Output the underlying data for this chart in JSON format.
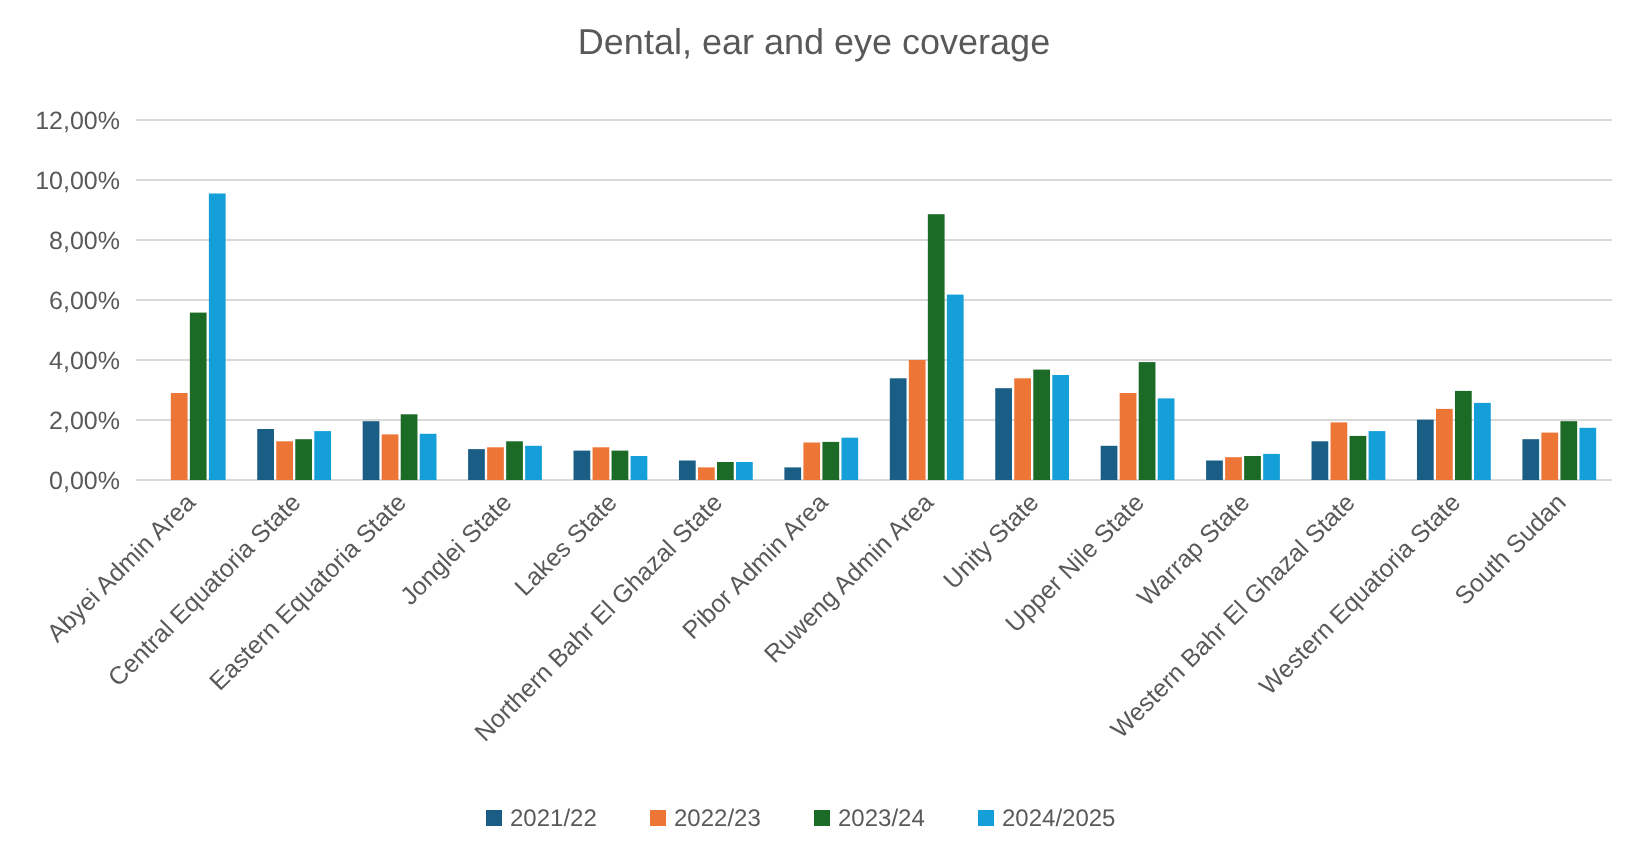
{
  "chart_data": {
    "type": "bar",
    "title": "Dental, ear and eye coverage",
    "categories": [
      "Abyei Admin Area",
      "Central Equatoria State",
      "Eastern Equatoria State",
      "Jonglei State",
      "Lakes State",
      "Northern Bahr El Ghazal State",
      "Pibor Admin Area",
      "Ruweng Admin Area",
      "Unity State",
      "Upper Nile State",
      "Warrap State",
      "Western Bahr El Ghazal State",
      "Western Equatoria State",
      "South Sudan"
    ],
    "series": [
      {
        "name": "2021/22",
        "color": "#1a5e86",
        "values": [
          null,
          1.7,
          1.96,
          1.03,
          0.98,
          0.65,
          0.42,
          3.39,
          3.06,
          1.14,
          0.65,
          1.29,
          2.01,
          1.36
        ]
      },
      {
        "name": "2022/23",
        "color": "#ed7535",
        "values": [
          2.9,
          1.29,
          1.52,
          1.09,
          1.09,
          0.42,
          1.25,
          4.0,
          3.39,
          2.9,
          0.76,
          1.92,
          2.37,
          1.58
        ]
      },
      {
        "name": "2023/24",
        "color": "#1b6b26",
        "values": [
          5.58,
          1.36,
          2.19,
          1.29,
          0.98,
          0.6,
          1.27,
          8.86,
          3.68,
          3.93,
          0.8,
          1.47,
          2.97,
          1.96
        ]
      },
      {
        "name": "2024/2025",
        "color": "#149fd8",
        "values": [
          9.55,
          1.63,
          1.54,
          1.14,
          0.8,
          0.6,
          1.41,
          6.18,
          3.5,
          2.72,
          0.87,
          1.63,
          2.57,
          1.74
        ]
      }
    ],
    "ylim": [
      0,
      12
    ],
    "yticks": [
      {
        "value": 0,
        "label": "0,00%"
      },
      {
        "value": 2,
        "label": "2,00%"
      },
      {
        "value": 4,
        "label": "4,00%"
      },
      {
        "value": 6,
        "label": "6,00%"
      },
      {
        "value": 8,
        "label": "8,00%"
      },
      {
        "value": 10,
        "label": "10,00%"
      },
      {
        "value": 12,
        "label": "12,00%"
      }
    ],
    "grid": "y",
    "legend": "bottom"
  }
}
